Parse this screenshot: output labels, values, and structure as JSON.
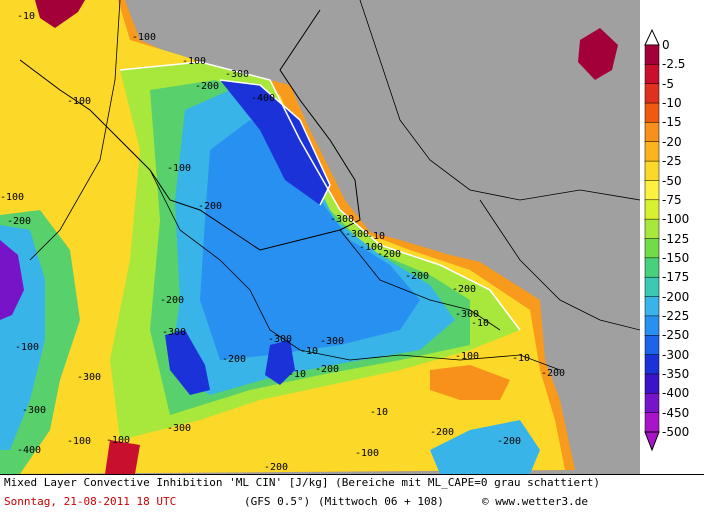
{
  "map": {
    "contour_labels": [
      "-10",
      "-100",
      "-100",
      "-100",
      "-100",
      "-100",
      "-100",
      "-100",
      "-100",
      "-100",
      "-200",
      "-200",
      "-200",
      "-200",
      "-200",
      "-200",
      "-200",
      "-200",
      "-200",
      "-200",
      "-200",
      "-300",
      "-300",
      "-300",
      "-300",
      "-300",
      "-300",
      "-300",
      "-300",
      "-400",
      "-400",
      "-10",
      "-10",
      "-10",
      "-10",
      "-10",
      "-10",
      "-100",
      "-100",
      "-200",
      "-200",
      "-300",
      "-300"
    ]
  },
  "legend": {
    "labels": [
      "0",
      "-2.5",
      "-5",
      "-10",
      "-15",
      "-20",
      "-25",
      "-50",
      "-75",
      "-100",
      "-125",
      "-150",
      "-175",
      "-200",
      "-225",
      "-250",
      "-300",
      "-350",
      "-400",
      "-450",
      "-500"
    ],
    "colors": [
      "#a3003a",
      "#c8102e",
      "#e03020",
      "#f05a10",
      "#f8901c",
      "#fbb41e",
      "#fcd828",
      "#fcf040",
      "#d8f030",
      "#a8e83c",
      "#70dc48",
      "#48d07c",
      "#3cc8b4",
      "#38b4e8",
      "#2890f0",
      "#1e64e8",
      "#1a32d8",
      "#3c14c8",
      "#7814c8",
      "#a814c8"
    ]
  },
  "footer": {
    "line1": "Mixed Layer Convective Inhibition 'ML CIN' [J/kg] (Bereiche mit ML_CAPE=0 grau schattiert)",
    "date": "Sonntag, 21-08-2011  18 UTC",
    "model": "(GFS 0.5°)",
    "run": "(Mittwoch 06 + 108)",
    "credit": "© www.wetter3.de"
  }
}
